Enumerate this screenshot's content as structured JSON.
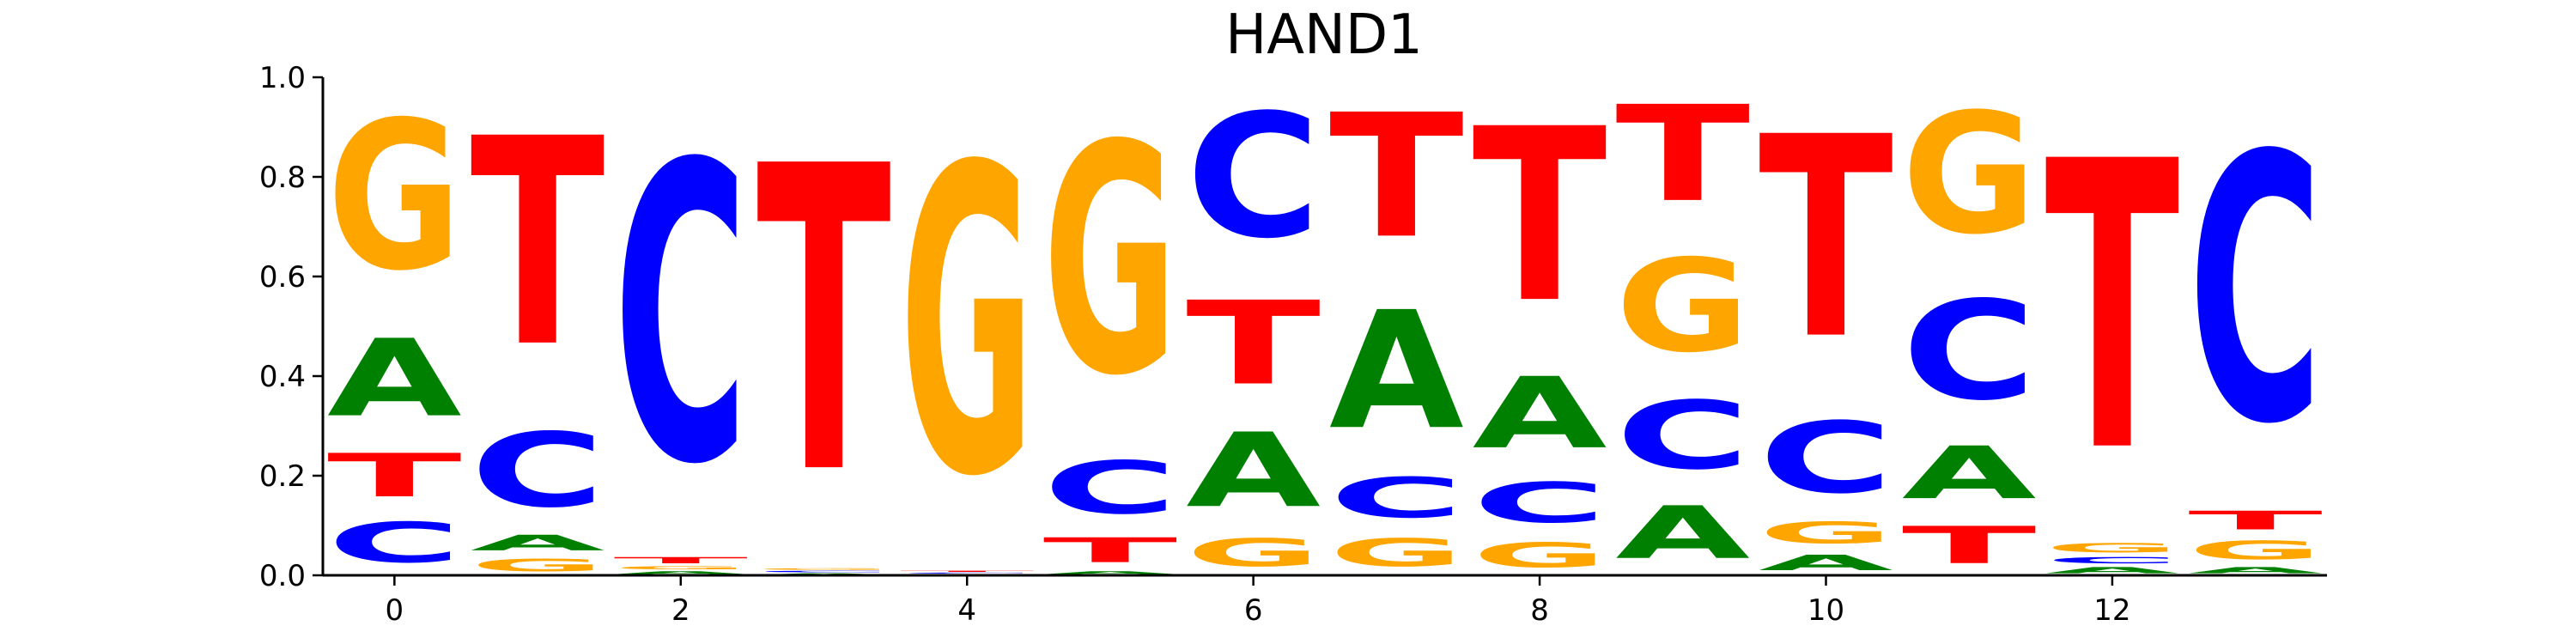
{
  "chart_data": {
    "type": "sequence-logo",
    "title": "HAND1",
    "xlabel": "",
    "ylabel": "",
    "ylim": [
      0,
      1.0
    ],
    "xlim": [
      -0.5,
      13.5
    ],
    "grid": false,
    "xticks": [
      0,
      2,
      4,
      6,
      8,
      10,
      12
    ],
    "xtick_labels": [
      "0",
      "2",
      "4",
      "6",
      "8",
      "10",
      "12"
    ],
    "yticks": [
      0.0,
      0.2,
      0.4,
      0.6,
      0.8,
      1.0
    ],
    "ytick_labels": [
      "0.0",
      "0.2",
      "0.4",
      "0.6",
      "0.8",
      "1.0"
    ],
    "colors": {
      "A": "#008000",
      "C": "#0000ff",
      "G": "#ffa500",
      "T": "#ff0000"
    },
    "positions": [
      {
        "x": 0,
        "stack": [
          {
            "base": "C",
            "value": 0.13
          },
          {
            "base": "T",
            "value": 0.14
          },
          {
            "base": "A",
            "value": 0.25
          },
          {
            "base": "G",
            "value": 0.48
          }
        ]
      },
      {
        "x": 1,
        "stack": [
          {
            "base": "G",
            "value": 0.04
          },
          {
            "base": "A",
            "value": 0.05
          },
          {
            "base": "C",
            "value": 0.24
          },
          {
            "base": "T",
            "value": 0.67
          }
        ]
      },
      {
        "x": 2,
        "stack": [
          {
            "base": "A",
            "value": 0.01
          },
          {
            "base": "G",
            "value": 0.01
          },
          {
            "base": "T",
            "value": 0.02
          },
          {
            "base": "C",
            "value": 0.96
          }
        ]
      },
      {
        "x": 3,
        "stack": [
          {
            "base": "A",
            "value": 0.005
          },
          {
            "base": "C",
            "value": 0.005
          },
          {
            "base": "G",
            "value": 0.005
          },
          {
            "base": "T",
            "value": 0.985
          }
        ]
      },
      {
        "x": 4,
        "stack": [
          {
            "base": "A",
            "value": 0.003
          },
          {
            "base": "C",
            "value": 0.003
          },
          {
            "base": "T",
            "value": 0.004
          },
          {
            "base": "G",
            "value": 0.99
          }
        ]
      },
      {
        "x": 5,
        "stack": [
          {
            "base": "A",
            "value": 0.01
          },
          {
            "base": "T",
            "value": 0.08
          },
          {
            "base": "C",
            "value": 0.17
          },
          {
            "base": "G",
            "value": 0.74
          }
        ]
      },
      {
        "x": 6,
        "stack": [
          {
            "base": "G",
            "value": 0.09
          },
          {
            "base": "A",
            "value": 0.24
          },
          {
            "base": "T",
            "value": 0.27
          },
          {
            "base": "C",
            "value": 0.4
          }
        ]
      },
      {
        "x": 7,
        "stack": [
          {
            "base": "G",
            "value": 0.09
          },
          {
            "base": "C",
            "value": 0.13
          },
          {
            "base": "A",
            "value": 0.38
          },
          {
            "base": "T",
            "value": 0.4
          }
        ]
      },
      {
        "x": 8,
        "stack": [
          {
            "base": "G",
            "value": 0.08
          },
          {
            "base": "C",
            "value": 0.13
          },
          {
            "base": "A",
            "value": 0.23
          },
          {
            "base": "T",
            "value": 0.56
          }
        ]
      },
      {
        "x": 9,
        "stack": [
          {
            "base": "A",
            "value": 0.17
          },
          {
            "base": "C",
            "value": 0.22
          },
          {
            "base": "G",
            "value": 0.3
          },
          {
            "base": "T",
            "value": 0.31
          }
        ]
      },
      {
        "x": 10,
        "stack": [
          {
            "base": "A",
            "value": 0.05
          },
          {
            "base": "G",
            "value": 0.07
          },
          {
            "base": "C",
            "value": 0.23
          },
          {
            "base": "T",
            "value": 0.65
          }
        ]
      },
      {
        "x": 11,
        "stack": [
          {
            "base": "T",
            "value": 0.12
          },
          {
            "base": "A",
            "value": 0.17
          },
          {
            "base": "C",
            "value": 0.32
          },
          {
            "base": "G",
            "value": 0.39
          }
        ]
      },
      {
        "x": 12,
        "stack": [
          {
            "base": "A",
            "value": 0.02
          },
          {
            "base": "C",
            "value": 0.02
          },
          {
            "base": "G",
            "value": 0.03
          },
          {
            "base": "T",
            "value": 0.93
          }
        ]
      },
      {
        "x": 13,
        "stack": [
          {
            "base": "A",
            "value": 0.02
          },
          {
            "base": "G",
            "value": 0.06
          },
          {
            "base": "T",
            "value": 0.06
          },
          {
            "base": "C",
            "value": 0.86
          }
        ]
      }
    ]
  }
}
